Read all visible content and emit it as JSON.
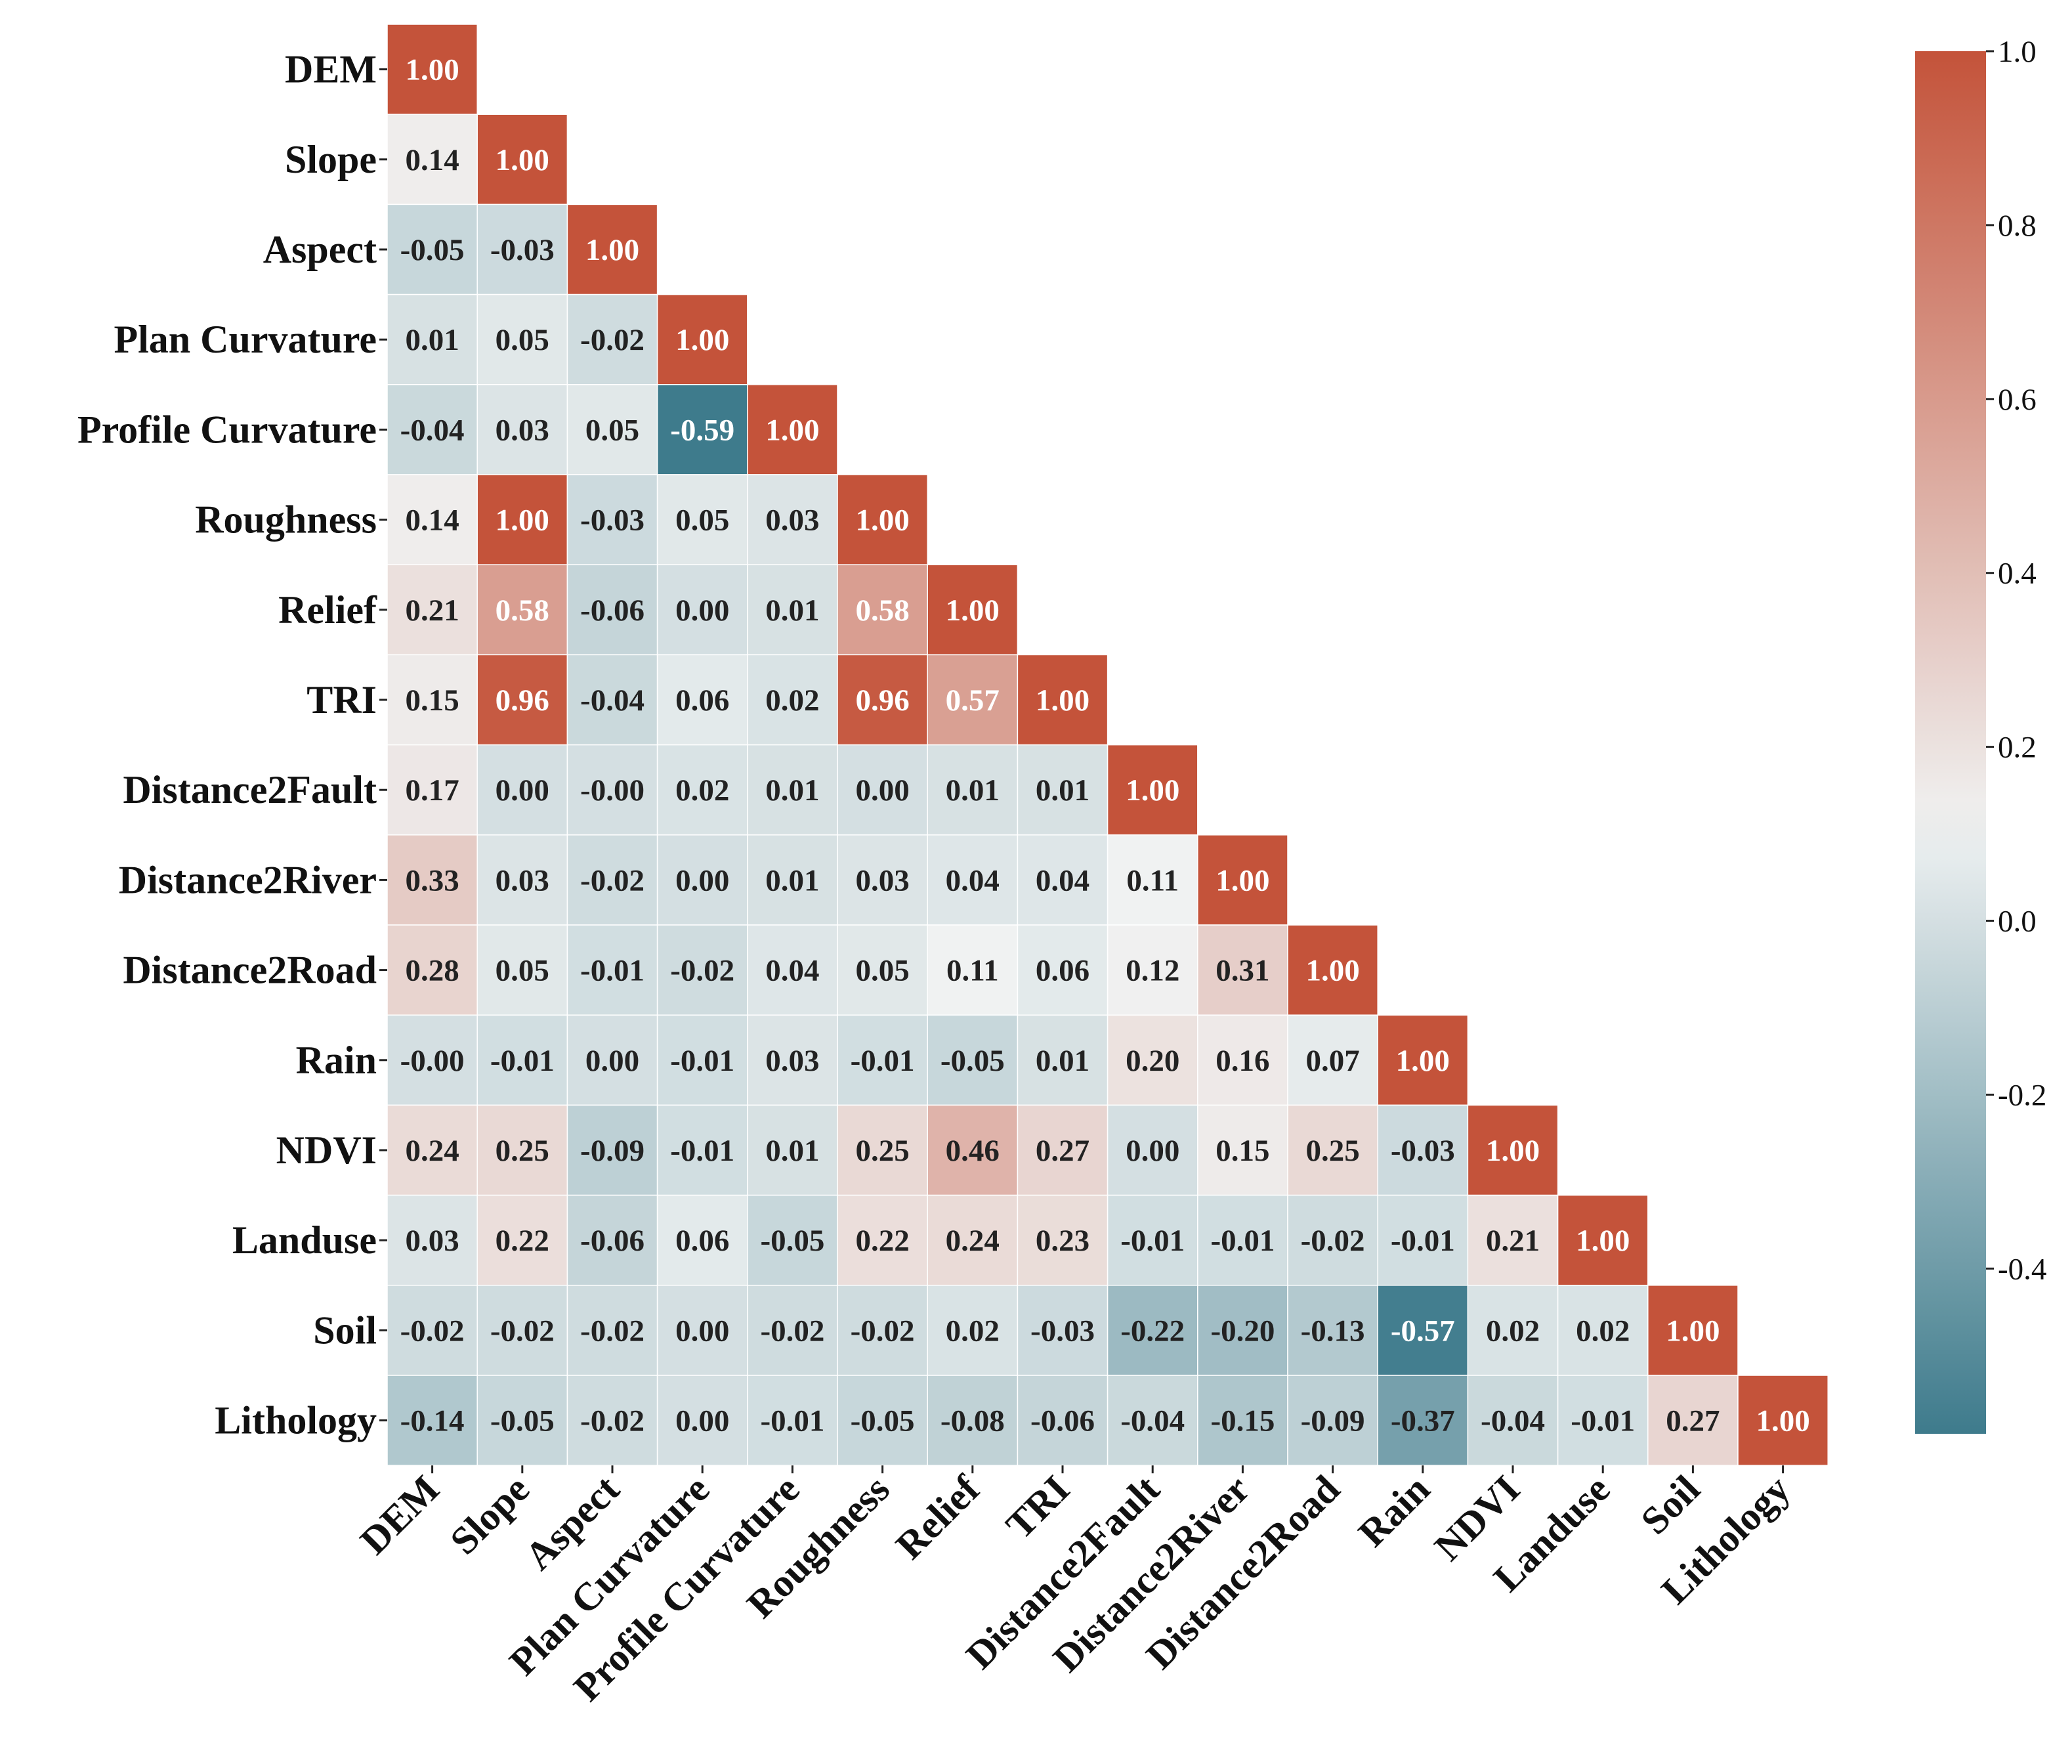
{
  "chart_data": {
    "type": "heatmap",
    "title": "",
    "variables": [
      "DEM",
      "Slope",
      "Aspect",
      "Plan Curvature",
      "Profile Curvature",
      "Roughness",
      "Relief",
      "TRI",
      "Distance2Fault",
      "Distance2River",
      "Distance2Road",
      "Rain",
      "NDVI",
      "Landuse",
      "Soil",
      "Lithology"
    ],
    "matrix": [
      [
        "1.00"
      ],
      [
        "0.14",
        "1.00"
      ],
      [
        "-0.05",
        "-0.03",
        "1.00"
      ],
      [
        "0.01",
        "0.05",
        "-0.02",
        "1.00"
      ],
      [
        "-0.04",
        "0.03",
        "0.05",
        "-0.59",
        "1.00"
      ],
      [
        "0.14",
        "1.00",
        "-0.03",
        "0.05",
        "0.03",
        "1.00"
      ],
      [
        "0.21",
        "0.58",
        "-0.06",
        "0.00",
        "0.01",
        "0.58",
        "1.00"
      ],
      [
        "0.15",
        "0.96",
        "-0.04",
        "0.06",
        "0.02",
        "0.96",
        "0.57",
        "1.00"
      ],
      [
        "0.17",
        "0.00",
        "-0.00",
        "0.02",
        "0.01",
        "0.00",
        "0.01",
        "0.01",
        "1.00"
      ],
      [
        "0.33",
        "0.03",
        "-0.02",
        "0.00",
        "0.01",
        "0.03",
        "0.04",
        "0.04",
        "0.11",
        "1.00"
      ],
      [
        "0.28",
        "0.05",
        "-0.01",
        "-0.02",
        "0.04",
        "0.05",
        "0.11",
        "0.06",
        "0.12",
        "0.31",
        "1.00"
      ],
      [
        "-0.00",
        "-0.01",
        "0.00",
        "-0.01",
        "0.03",
        "-0.01",
        "-0.05",
        "0.01",
        "0.20",
        "0.16",
        "0.07",
        "1.00"
      ],
      [
        "0.24",
        "0.25",
        "-0.09",
        "-0.01",
        "0.01",
        "0.25",
        "0.46",
        "0.27",
        "0.00",
        "0.15",
        "0.25",
        "-0.03",
        "1.00"
      ],
      [
        "0.03",
        "0.22",
        "-0.06",
        "0.06",
        "-0.05",
        "0.22",
        "0.24",
        "0.23",
        "-0.01",
        "-0.01",
        "-0.02",
        "-0.01",
        "0.21",
        "1.00"
      ],
      [
        "-0.02",
        "-0.02",
        "-0.02",
        "0.00",
        "-0.02",
        "-0.02",
        "0.02",
        "-0.03",
        "-0.22",
        "-0.20",
        "-0.13",
        "-0.57",
        "0.02",
        "0.02",
        "1.00"
      ],
      [
        "-0.14",
        "-0.05",
        "-0.02",
        "0.00",
        "-0.01",
        "-0.05",
        "-0.08",
        "-0.06",
        "-0.04",
        "-0.15",
        "-0.09",
        "-0.37",
        "-0.04",
        "-0.01",
        "0.27",
        "1.00"
      ]
    ],
    "colorbar": {
      "range": [
        -0.59,
        1.0
      ],
      "ticks": [
        "1.0",
        "0.8",
        "0.6",
        "0.4",
        "0.2",
        "0.0",
        "-0.2",
        "-0.4"
      ]
    },
    "colors": {
      "low": "#3e7b8c",
      "mid": "#f0f2f2",
      "high": "#c4533a",
      "text_dark": "#222222",
      "text_light": "#ffffff"
    }
  }
}
